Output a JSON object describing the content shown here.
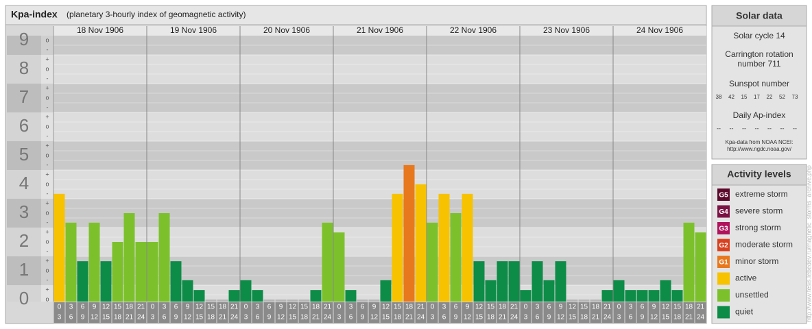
{
  "chart_data": {
    "type": "bar",
    "title": "Kpa-index",
    "subtitle": "(planetary 3-hourly index of geomagnetic activity)",
    "ylim": [
      0,
      9
    ],
    "yticks": [
      0,
      1,
      2,
      3,
      4,
      5,
      6,
      7,
      8,
      9
    ],
    "sub_tick_labels": [
      "-",
      "o",
      "+"
    ],
    "intervals": [
      [
        "0",
        "3"
      ],
      [
        "3",
        "6"
      ],
      [
        "6",
        "9"
      ],
      [
        "9",
        "12"
      ],
      [
        "12",
        "15"
      ],
      [
        "15",
        "18"
      ],
      [
        "18",
        "21"
      ],
      [
        "21",
        "24"
      ]
    ],
    "days": [
      {
        "date": "18 Nov 1906",
        "values": [
          3.67,
          2.67,
          1.33,
          2.67,
          1.33,
          2,
          3,
          2
        ],
        "colors": [
          "#f7c200",
          "#7cc12c",
          "#0d8c47",
          "#7cc12c",
          "#0d8c47",
          "#7cc12c",
          "#7cc12c",
          "#7cc12c"
        ]
      },
      {
        "date": "19 Nov 1906",
        "values": [
          2,
          3,
          1.33,
          0.67,
          0.33,
          0,
          0,
          0.33
        ],
        "colors": [
          "#7cc12c",
          "#7cc12c",
          "#0d8c47",
          "#0d8c47",
          "#0d8c47",
          "#b4b4b4",
          "#b4b4b4",
          "#0d8c47"
        ]
      },
      {
        "date": "20 Nov 1906",
        "values": [
          0.67,
          0.33,
          0,
          0,
          0,
          0,
          0.33,
          2.67
        ],
        "colors": [
          "#0d8c47",
          "#0d8c47",
          "#b4b4b4",
          "#b4b4b4",
          "#b4b4b4",
          "#b4b4b4",
          "#0d8c47",
          "#7cc12c"
        ]
      },
      {
        "date": "21 Nov 1906",
        "values": [
          2.33,
          0.33,
          0,
          0,
          0.67,
          3.67,
          4.67,
          4
        ],
        "colors": [
          "#7cc12c",
          "#0d8c47",
          "#b4b4b4",
          "#b4b4b4",
          "#0d8c47",
          "#f7c200",
          "#e8781e",
          "#f7c200"
        ]
      },
      {
        "date": "22 Nov 1906",
        "values": [
          2.67,
          3.67,
          3,
          3.67,
          1.33,
          0.67,
          1.33,
          1.33
        ],
        "colors": [
          "#7cc12c",
          "#f7c200",
          "#7cc12c",
          "#f7c200",
          "#0d8c47",
          "#0d8c47",
          "#0d8c47",
          "#0d8c47"
        ]
      },
      {
        "date": "23 Nov 1906",
        "values": [
          0.33,
          1.33,
          0.67,
          1.33,
          0,
          0,
          0,
          0.33
        ],
        "colors": [
          "#0d8c47",
          "#0d8c47",
          "#0d8c47",
          "#0d8c47",
          "#b4b4b4",
          "#b4b4b4",
          "#b4b4b4",
          "#0d8c47"
        ]
      },
      {
        "date": "24 Nov 1906",
        "values": [
          0.67,
          0.33,
          0.33,
          0.33,
          0.67,
          0.33,
          2.67,
          2.33
        ],
        "colors": [
          "#0d8c47",
          "#0d8c47",
          "#0d8c47",
          "#0d8c47",
          "#0d8c47",
          "#0d8c47",
          "#7cc12c",
          "#7cc12c"
        ]
      }
    ]
  },
  "solar": {
    "title": "Solar data",
    "cycle": "Solar cycle 14",
    "rotation": "Carrington rotation number 711",
    "sunspot_title": "Sunspot number",
    "sunspots": [
      "38",
      "42",
      "15",
      "17",
      "22",
      "52",
      "73"
    ],
    "ap_title": "Daily Ap-index",
    "ap": [
      "--",
      "--",
      "--",
      "--",
      "--",
      "--",
      "--"
    ],
    "source": "Kpa-data from NOAA NCEI:",
    "source_url": "http://www.ngdc.noaa.gov/"
  },
  "levels": {
    "title": "Activity levels",
    "items": [
      {
        "badge": "G5",
        "label": "extreme storm",
        "color": "#5c0a2c"
      },
      {
        "badge": "G4",
        "label": "severe storm",
        "color": "#7c1244"
      },
      {
        "badge": "G3",
        "label": "strong storm",
        "color": "#b0125c"
      },
      {
        "badge": "G2",
        "label": "moderate storm",
        "color": "#d8401e"
      },
      {
        "badge": "G1",
        "label": "minor storm",
        "color": "#e8781e"
      },
      {
        "label": "active",
        "color": "#f7c200"
      },
      {
        "label": "unsettled",
        "color": "#7cc12c"
      },
      {
        "label": "quiet",
        "color": "#0d8c47"
      }
    ]
  },
  "watermark": "http://www.tesis.lebedev.ru/magnetic_storms_archive.php"
}
